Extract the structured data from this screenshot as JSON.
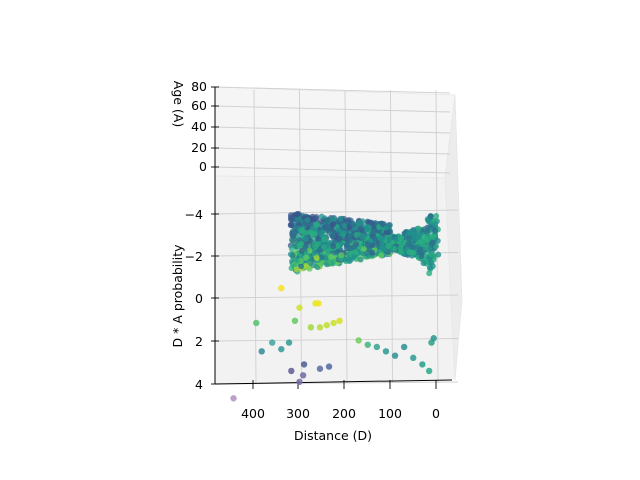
{
  "chart_data": {
    "type": "scatter",
    "projection": "3d",
    "colormap": "viridis",
    "grid": true,
    "xlabel": "Distance (D)",
    "ylabel": "Age (A)",
    "zlabel": "D * A probability",
    "xlim": [
      0,
      480
    ],
    "ylim": [
      0,
      80
    ],
    "zlim": [
      -5,
      4
    ],
    "xticks": [
      "400",
      "300",
      "200",
      "100",
      "0"
    ],
    "yticks": [
      "80",
      "60",
      "40",
      "20",
      "0"
    ],
    "zticks": [
      "−4",
      "−2",
      "0",
      "2",
      "4"
    ],
    "points": [
      {
        "x": 445,
        "y": 4,
        "z": -4.6,
        "color": "#b08fc0"
      },
      {
        "x": 300,
        "y": 2,
        "z": -3.8,
        "color": "#7d6ea8"
      },
      {
        "x": 292,
        "y": 2,
        "z": -3.5,
        "color": "#6f6aa4"
      },
      {
        "x": 318,
        "y": 2,
        "z": -3.3,
        "color": "#5e5c96"
      },
      {
        "x": 290,
        "y": 2,
        "z": -3.0,
        "color": "#4c5d92"
      },
      {
        "x": 255,
        "y": 2,
        "z": -3.2,
        "color": "#5a6aa4"
      },
      {
        "x": 235,
        "y": 2,
        "z": -3.1,
        "color": "#4f6aa0"
      },
      {
        "x": 383,
        "y": 2,
        "z": -2.4,
        "color": "#35889a"
      },
      {
        "x": 360,
        "y": 2,
        "z": -2.0,
        "color": "#3fa59b"
      },
      {
        "x": 340,
        "y": 2,
        "z": -2.3,
        "color": "#329a96"
      },
      {
        "x": 323,
        "y": 2,
        "z": -2.0,
        "color": "#2f9a92"
      },
      {
        "x": 395,
        "y": 2,
        "z": -1.1,
        "color": "#55c16b"
      },
      {
        "x": 310,
        "y": 2,
        "z": -1.0,
        "color": "#63c960"
      },
      {
        "x": 300,
        "y": 2,
        "z": -0.4,
        "color": "#cfe12c"
      },
      {
        "x": 265,
        "y": 2,
        "z": -0.2,
        "color": "#e8e51c"
      },
      {
        "x": 258,
        "y": 2,
        "z": -0.2,
        "color": "#efe51b"
      },
      {
        "x": 340,
        "y": 2,
        "z": 0.5,
        "color": "#f6e41e"
      },
      {
        "x": 275,
        "y": 2,
        "z": -1.3,
        "color": "#9fd83f"
      },
      {
        "x": 255,
        "y": 2,
        "z": -1.3,
        "color": "#b6dd35"
      },
      {
        "x": 225,
        "y": 2,
        "z": -1.1,
        "color": "#c9e02b"
      },
      {
        "x": 212,
        "y": 2,
        "z": -1.0,
        "color": "#d6e122"
      },
      {
        "x": 240,
        "y": 2,
        "z": -1.2,
        "color": "#bddf2f"
      },
      {
        "x": 170,
        "y": 2,
        "z": -1.9,
        "color": "#71cc5c"
      },
      {
        "x": 150,
        "y": 2,
        "z": -2.1,
        "color": "#3fb57c"
      },
      {
        "x": 130,
        "y": 2,
        "z": -2.2,
        "color": "#31a68c"
      },
      {
        "x": 110,
        "y": 2,
        "z": -2.4,
        "color": "#2d9a92"
      },
      {
        "x": 90,
        "y": 2,
        "z": -2.6,
        "color": "#2c9292"
      },
      {
        "x": 70,
        "y": 2,
        "z": -2.2,
        "color": "#2a9193"
      },
      {
        "x": 50,
        "y": 2,
        "z": -2.7,
        "color": "#2a9a92"
      },
      {
        "x": 30,
        "y": 2,
        "z": -3.0,
        "color": "#27a08d"
      },
      {
        "x": 15,
        "y": 2,
        "z": -3.3,
        "color": "#28a98a"
      },
      {
        "x": 10,
        "y": 2,
        "z": -2.0,
        "color": "#2ba085"
      },
      {
        "x": 5,
        "y": 2,
        "z": -1.8,
        "color": "#29978f"
      }
    ]
  }
}
